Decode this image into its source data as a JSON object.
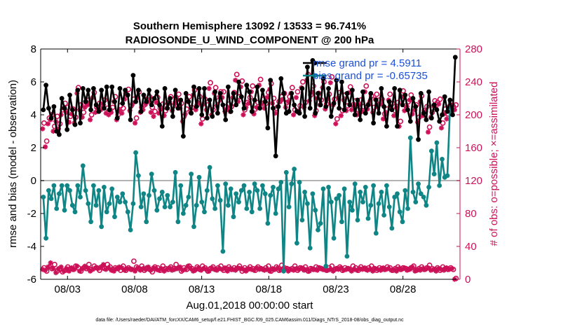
{
  "figure": {
    "title_line1": "Southern Hemisphere 13092 / 13533 = 96.741%",
    "title_line2": "RADIOSONDE_U_WIND_COMPONENT @ 200 hPa",
    "footnote": "data file: /Users/raeder/DAI/ATM_forcXX/CAM6_setup/f.e21.FHIST_BGC.f09_025.CAM6assim.011/Diags_NTrS_2018-08/obs_diag_output.nc"
  },
  "chart_data": {
    "type": "line",
    "xlabel": "Aug.01,2018 00:00:00 start",
    "ylabel_left": "rmse and bias (model - observation)",
    "ylabel_right": "# of obs: o=possible; ×=assimilated",
    "xlim": [
      1,
      32.25
    ],
    "ylim_left": [
      -6,
      8
    ],
    "ylim_right": [
      0,
      280
    ],
    "x_tick_positions": [
      3,
      8,
      13,
      18,
      23,
      28
    ],
    "x_tick_labels": [
      "08/03",
      "08/08",
      "08/13",
      "08/18",
      "08/23",
      "08/28"
    ],
    "y_left_ticks": [
      -6,
      -4,
      -2,
      0,
      2,
      4,
      6,
      8
    ],
    "y_right_ticks": [
      0,
      40,
      80,
      120,
      160,
      200,
      240,
      280
    ],
    "colors": {
      "rmse": "#000000",
      "bias": "#0f8585",
      "obs": "#cc1158",
      "legend_text": "#1a4fd8",
      "zero_line": "#b3b3b3"
    },
    "legend": [
      {
        "name": "rmse grand pr = 4.5911"
      },
      {
        "name": "bias grand pr = -0.65735"
      }
    ],
    "series": [
      {
        "name": "rmse",
        "values": [
          4.3,
          5.8,
          4.4,
          3.8,
          4.5,
          3.0,
          2.8,
          5.0,
          4.4,
          3.1,
          5.2,
          4.3,
          3.4,
          5.5,
          3.5,
          5.6,
          4.8,
          5.5,
          4.3,
          5.6,
          4.6,
          4.2,
          5.5,
          4.4,
          5.7,
          4.3,
          5.7,
          4.8,
          3.8,
          5.6,
          4.7,
          5.5,
          5.2,
          3.7,
          6.4,
          4.8,
          5.5,
          4.2,
          5.2,
          4.8,
          5.5,
          4.6,
          5.0,
          5.4,
          4.6,
          3.3,
          5.6,
          4.4,
          5.0,
          3.9,
          5.5,
          4.4,
          4.9,
          2.7,
          5.3,
          4.8,
          4.1,
          5.7,
          4.5,
          5.6,
          4.0,
          5.6,
          3.8,
          4.9,
          3.9,
          5.4,
          4.1,
          5.3,
          4.6,
          3.7,
          5.7,
          4.2,
          5.3,
          4.6,
          6.0,
          5.1,
          4.4,
          5.8,
          5.4,
          4.2,
          4.9,
          5.7,
          4.4,
          5.5,
          4.8,
          3.2,
          6.1,
          4.4,
          1.5,
          4.5,
          6.2,
          5.3,
          4.1,
          4.2,
          5.3,
          4.6,
          4.2,
          4.1,
          5.6,
          3.9,
          6.9,
          4.4,
          7.3,
          4.1,
          5.3,
          4.6,
          6.2,
          4.5,
          5.6,
          3.9,
          4.7,
          6.1,
          4.4,
          6.0,
          4.3,
          5.3,
          4.6,
          5.5,
          4.0,
          4.9,
          3.7,
          5.4,
          4.1,
          4.6,
          5.3,
          3.5,
          4.9,
          4.1,
          5.6,
          4.5,
          3.3,
          4.8,
          4.3,
          5.6,
          3.3,
          5.5,
          4.6,
          5.2,
          4.3,
          3.6,
          5.0,
          4.5,
          2.5,
          5.3,
          4.1,
          3.7,
          5.4,
          3.8,
          4.6,
          4.3,
          3.6,
          4.0,
          5.1,
          4.2,
          4.9,
          4.0,
          7.5
        ]
      },
      {
        "name": "bias",
        "values": [
          -1.0,
          -3.5,
          -0.6,
          -1.1,
          -0.3,
          -1.7,
          -0.8,
          -0.3,
          -1.8,
          -0.3,
          -0.6,
          -1.5,
          -1.9,
          -0.3,
          -1.0,
          0.9,
          -0.6,
          -1.4,
          -2.5,
          -0.3,
          -1.5,
          -0.6,
          -2.8,
          -0.4,
          -1.9,
          -1.4,
          -0.5,
          -2.2,
          -1.0,
          -1.3,
          -0.8,
          -1.3,
          -1.9,
          -3.0,
          -1.4,
          1.7,
          0.3,
          -1.6,
          -0.8,
          -2.5,
          -0.9,
          0.4,
          -0.6,
          -1.8,
          -1.1,
          -0.7,
          -1.6,
          -0.9,
          -1.6,
          -1.3,
          0.5,
          -2.5,
          -0.3,
          -2.0,
          -1.5,
          -1.0,
          0.4,
          -2.8,
          -1.5,
          0.2,
          -1.3,
          -1.9,
          -0.6,
          0.8,
          -1.1,
          -1.7,
          -0.3,
          -1.2,
          -4.3,
          -0.2,
          -1.5,
          -0.5,
          -2.2,
          -0.8,
          -1.3,
          -0.6,
          -0.3,
          -1.7,
          -0.7,
          -1.9,
          -0.2,
          -0.6,
          -1.7,
          -0.3,
          -0.8,
          -2.6,
          -0.9,
          -0.4,
          -2.0,
          -0.5,
          -0.1,
          -5.5,
          0.5,
          -1.6,
          -0.2,
          0.7,
          -3.8,
          -0.1,
          -2.4,
          -0.7,
          -1.4,
          -4.1,
          -0.8,
          -1.8,
          -3.0,
          -2.6,
          -0.5,
          -5.2,
          -0.4,
          -1.3,
          -3.5,
          -1.1,
          -0.9,
          -2.5,
          -0.5,
          -4.6,
          -1.3,
          -1.8,
          -0.2,
          -2.4,
          -0.7,
          -1.3,
          -0.4,
          -2.3,
          -1.5,
          -0.3,
          -3.2,
          -1.4,
          -0.7,
          -2.1,
          -0.3,
          -1.6,
          -2.9,
          -1.0,
          -0.8,
          -1.9,
          -2.5,
          -0.6,
          -1.7,
          2.6,
          -0.7,
          -1.3,
          -0.2,
          -0.8,
          -1.0,
          -1.5,
          -0.4,
          1.8,
          0.4,
          2.3,
          -0.3,
          1.3,
          0.2,
          0.3,
          4.5
        ]
      },
      {
        "name": "obs_possible",
        "values": [
          190,
          168,
          196,
          200,
          186,
          198,
          189,
          206,
          214,
          209,
          198,
          207,
          197,
          233,
          212,
          203,
          215,
          218,
          200,
          227,
          209,
          214,
          212,
          218,
          208,
          206,
          209,
          222,
          200,
          211,
          208,
          226,
          231,
          211,
          219,
          196,
          228,
          209,
          212,
          219,
          222,
          209,
          204,
          221,
          208,
          213,
          205,
          214,
          222,
          211,
          221,
          225,
          214,
          198,
          207,
          222,
          209,
          230,
          212,
          222,
          195,
          219,
          212,
          239,
          206,
          233,
          217,
          228,
          228,
          210,
          213,
          210,
          227,
          249,
          222,
          241,
          206,
          215,
          221,
          235,
          207,
          215,
          243,
          219,
          214,
          227,
          238,
          220,
          208,
          216,
          222,
          226,
          215,
          222,
          233,
          206,
          228,
          211,
          240,
          215,
          249,
          224,
          235,
          205,
          226,
          218,
          240,
          213,
          225,
          246,
          219,
          195,
          227,
          205,
          224,
          211,
          234,
          212,
          217,
          206,
          218,
          210,
          235,
          213,
          223,
          209,
          225,
          218,
          219,
          201,
          207,
          225,
          214,
          205,
          215,
          192,
          229,
          211,
          216,
          224,
          207,
          212,
          197,
          223,
          205,
          210,
          185,
          203,
          217,
          215,
          219,
          190,
          207,
          201,
          216,
          210,
          212
        ]
      },
      {
        "name": "obs_assimilated",
        "values": [
          183,
          161,
          189,
          194,
          180,
          192,
          183,
          200,
          208,
          203,
          191,
          201,
          190,
          226,
          206,
          197,
          209,
          212,
          194,
          221,
          203,
          208,
          206,
          212,
          202,
          200,
          203,
          216,
          194,
          205,
          202,
          219,
          224,
          205,
          213,
          190,
          221,
          203,
          206,
          213,
          216,
          203,
          198,
          215,
          202,
          207,
          199,
          208,
          216,
          205,
          214,
          218,
          208,
          192,
          201,
          216,
          203,
          224,
          206,
          215,
          189,
          213,
          206,
          232,
          200,
          226,
          211,
          222,
          221,
          204,
          207,
          204,
          221,
          242,
          216,
          234,
          200,
          209,
          214,
          228,
          201,
          209,
          236,
          213,
          208,
          221,
          231,
          214,
          202,
          210,
          216,
          219,
          209,
          216,
          226,
          200,
          221,
          205,
          233,
          209,
          242,
          217,
          228,
          199,
          220,
          212,
          233,
          207,
          219,
          239,
          212,
          189,
          221,
          199,
          218,
          205,
          227,
          206,
          211,
          200,
          212,
          204,
          228,
          207,
          217,
          203,
          219,
          212,
          213,
          195,
          201,
          218,
          208,
          199,
          209,
          186,
          222,
          205,
          210,
          218,
          201,
          206,
          191,
          216,
          199,
          204,
          179,
          197,
          211,
          208,
          213,
          184,
          201,
          195,
          210,
          204,
          206
        ]
      },
      {
        "name": "obs_low_possible",
        "values": [
          14,
          10,
          15,
          13,
          18,
          10,
          12,
          9,
          11,
          15,
          13,
          12,
          16,
          14,
          10,
          14,
          13,
          18,
          12,
          16,
          14,
          11,
          14,
          13,
          18,
          15,
          12,
          14,
          13,
          11,
          16,
          11,
          14,
          12,
          22,
          15,
          13,
          16,
          11,
          14,
          12,
          9,
          15,
          14,
          11,
          16,
          13,
          12,
          15,
          13,
          18,
          14,
          10,
          14,
          12,
          16,
          13,
          11,
          15,
          12,
          16,
          14,
          10,
          13,
          15,
          12,
          14,
          16,
          11,
          13,
          15,
          12,
          14,
          13,
          16,
          10,
          14,
          12,
          15,
          13,
          11,
          15,
          13,
          12,
          14,
          16,
          10,
          12,
          15,
          11,
          17,
          14,
          13,
          12,
          13,
          16,
          11,
          14,
          13,
          15,
          10,
          13,
          12,
          15,
          14,
          13,
          12,
          11,
          14,
          16,
          12,
          13,
          15,
          11,
          14,
          13,
          12,
          16,
          14,
          11,
          15,
          13,
          12,
          14,
          16,
          13,
          11,
          14,
          13,
          12,
          15,
          14,
          11,
          13,
          15,
          12,
          14,
          13,
          12,
          14,
          16,
          11,
          13,
          15,
          12,
          14,
          17,
          13,
          12,
          14,
          11,
          15,
          13,
          12,
          14,
          12,
          1
        ]
      },
      {
        "name": "obs_low_assimilated",
        "values": [
          12,
          11,
          15,
          20,
          13,
          8,
          13,
          15,
          10,
          13,
          10,
          14,
          12,
          16,
          10,
          13,
          16,
          14,
          10,
          12,
          14,
          13,
          15,
          18,
          12,
          14,
          11,
          10,
          13,
          15,
          14,
          11,
          13,
          13,
          12,
          10,
          14,
          11,
          13,
          12,
          15,
          11,
          14,
          12,
          11,
          13,
          10,
          12,
          14,
          11,
          12,
          13,
          15,
          11,
          12,
          16,
          13,
          10,
          12,
          14,
          11,
          13,
          12,
          10,
          14,
          12,
          11,
          13,
          12,
          14,
          10,
          13,
          12,
          11,
          14,
          13,
          12,
          10,
          13,
          12,
          11,
          14,
          12,
          13,
          11,
          12,
          10,
          13,
          12,
          14,
          11,
          12,
          13,
          10,
          12,
          11,
          13,
          12,
          14,
          11,
          12,
          10,
          13,
          12,
          11,
          14,
          12,
          13,
          11,
          12,
          10,
          13,
          12,
          14,
          11,
          12,
          13,
          10,
          12,
          11,
          13,
          12,
          14,
          11,
          12,
          10,
          13,
          12,
          11,
          14,
          12,
          13,
          11,
          12,
          10,
          13,
          12,
          14,
          11,
          12,
          15,
          10,
          12,
          11,
          13,
          12,
          14,
          11,
          12,
          10,
          13,
          12,
          11,
          14,
          12,
          13,
          0
        ]
      }
    ]
  }
}
